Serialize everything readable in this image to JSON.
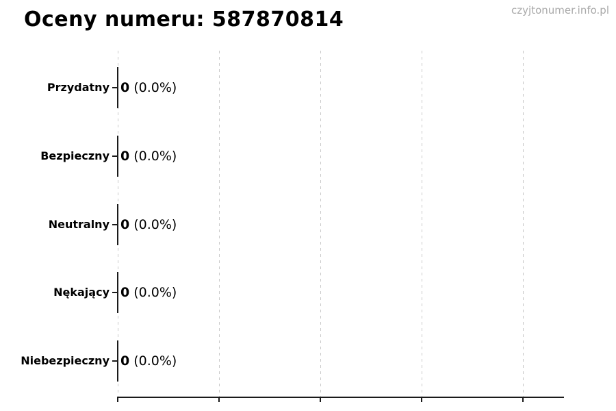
{
  "watermark": {
    "text": "czyjtonumer.info.pl"
  },
  "chart_data": {
    "type": "bar",
    "orientation": "horizontal",
    "title": "Oceny numeru: 587870814",
    "categories": [
      "Przydatny",
      "Bezpieczny",
      "Neutralny",
      "Nękający",
      "Niebezpieczny"
    ],
    "values": [
      0,
      0,
      0,
      0,
      0
    ],
    "percents": [
      "0.0%",
      "0.0%",
      "0.0%",
      "0.0%",
      "0.0%"
    ],
    "annotation_format": "{value} ({percent})",
    "xlabel": "",
    "ylabel": "",
    "x_tick_count": 5,
    "x_tick_labels_visible": false,
    "grid": "vertical-dashed",
    "legend": false
  },
  "colors": {
    "background": "#ffffff",
    "text": "#000000",
    "axis": "#1a1a1a",
    "grid": "#c9c9c9",
    "watermark": "#a9a9a9"
  }
}
